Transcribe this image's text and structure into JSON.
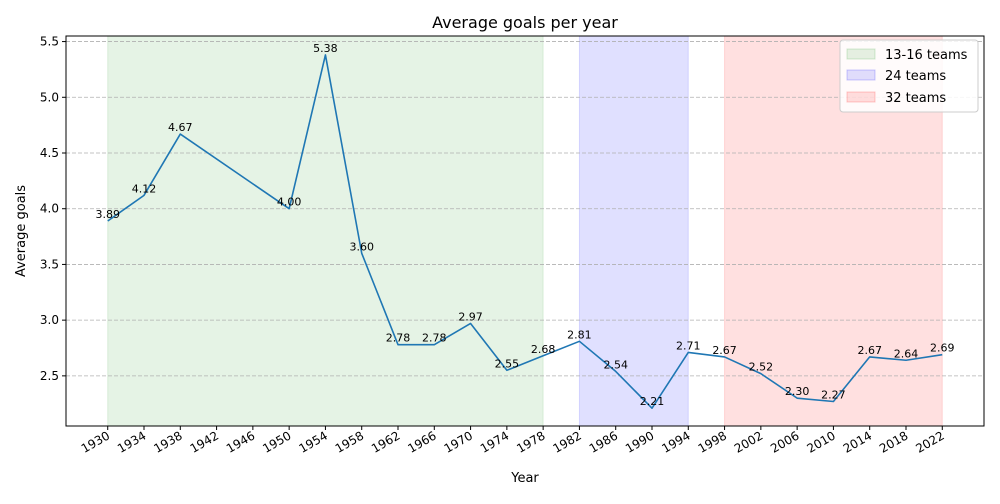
{
  "chart_data": {
    "type": "line",
    "title": "Average goals per year",
    "xlabel": "Year",
    "ylabel": "Average goals",
    "x": [
      1930,
      1934,
      1938,
      1950,
      1954,
      1958,
      1962,
      1966,
      1970,
      1974,
      1978,
      1982,
      1986,
      1990,
      1994,
      1998,
      2002,
      2006,
      2010,
      2014,
      2018,
      2022
    ],
    "series": [
      {
        "values": [
          3.89,
          4.12,
          4.67,
          4.0,
          5.38,
          3.6,
          2.78,
          2.78,
          2.97,
          2.55,
          2.68,
          2.81,
          2.54,
          2.21,
          2.71,
          2.67,
          2.52,
          2.3,
          2.27,
          2.67,
          2.64,
          2.69
        ],
        "color": "#1f77b4"
      }
    ],
    "data_labels": [
      "3.89",
      "4.12",
      "4.67",
      "4.00",
      "5.38",
      "3.60",
      "2.78",
      "2.78",
      "2.97",
      "2.55",
      "2.68",
      "2.81",
      "2.54",
      "2.21",
      "2.71",
      "2.67",
      "2.52",
      "2.30",
      "2.27",
      "2.67",
      "2.64",
      "2.69"
    ],
    "x_ticks": [
      "1930",
      "1934",
      "1938",
      "1942",
      "1946",
      "1950",
      "1954",
      "1958",
      "1962",
      "1966",
      "1970",
      "1974",
      "1978",
      "1982",
      "1986",
      "1990",
      "1994",
      "1998",
      "2002",
      "2006",
      "2010",
      "2014",
      "2018",
      "2022"
    ],
    "y_ticks": [
      "2.5",
      "3.0",
      "3.5",
      "4.0",
      "4.5",
      "5.0",
      "5.5"
    ],
    "xlim": [
      1925.4,
      2026.6
    ],
    "ylim": [
      2.05,
      5.55
    ],
    "grid": "y-dashed",
    "legend_position": "top-right",
    "shaded_regions": [
      {
        "name": "13-16 teams",
        "x_start": 1930,
        "x_end": 1978,
        "color": "#2ca02c"
      },
      {
        "name": "24 teams",
        "x_start": 1982,
        "x_end": 1994,
        "color": "#0000ff"
      },
      {
        "name": "32 teams",
        "x_start": 1998,
        "x_end": 2022,
        "color": "#ff0000"
      }
    ]
  }
}
